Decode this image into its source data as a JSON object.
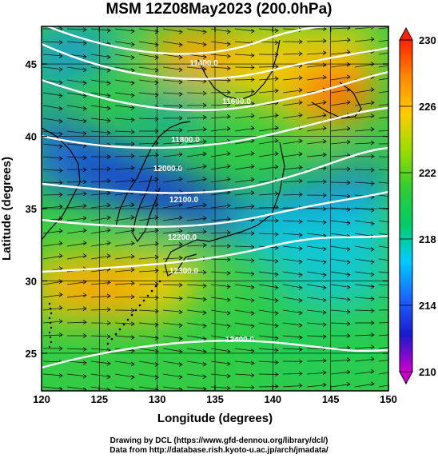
{
  "title": "MSM 12Z08May2023 (200.0hPa)",
  "credits": {
    "line1": "Drawing by DCL (https://www.gfd-dennou.org/library/dcl/)",
    "line2": "Data from http://database.rish.kyoto-u.ac.jp/arch/jmadata/"
  },
  "chart_data": {
    "type": "heatmap",
    "title": "MSM 12Z08May2023 (200.0hPa)",
    "xlabel": "Longitude (degrees)",
    "ylabel": "Latitude  (degrees)",
    "xlim": [
      120,
      150
    ],
    "ylim": [
      22.4,
      47.6
    ],
    "xticks": [
      120,
      125,
      130,
      135,
      140,
      145,
      150
    ],
    "yticks": [
      25,
      30,
      35,
      40,
      45
    ],
    "colorbar": {
      "min": 210,
      "max": 230,
      "ticks": [
        210,
        214,
        218,
        222,
        226,
        230
      ],
      "colormap": [
        "#cc00cc",
        "#1a1acc",
        "#1a66ff",
        "#00ccff",
        "#00cc66",
        "#33cc33",
        "#99dd00",
        "#ffcc00",
        "#ff8800",
        "#ff2200"
      ]
    },
    "contours": [
      {
        "label": "11400.0"
      },
      {
        "label": "11600.0"
      },
      {
        "label": "11800.0"
      },
      {
        "label": "12000.0"
      },
      {
        "label": "12100.0"
      },
      {
        "label": "12200.0"
      },
      {
        "label": "12300.0"
      },
      {
        "label": "12400.0"
      }
    ],
    "overlays": [
      "wind streamlines",
      "coastlines",
      "lat/lon grid"
    ]
  }
}
